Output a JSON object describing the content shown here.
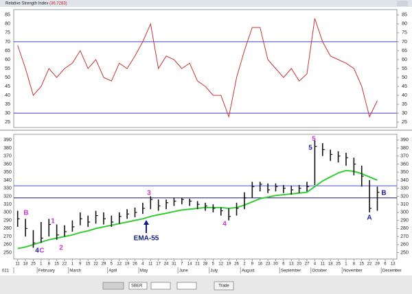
{
  "window": {
    "title": "Relative Strength Index",
    "current_value_label": "(36.7283)"
  },
  "chart_data": [
    {
      "type": "line",
      "name": "rsi",
      "color": "#c83232",
      "values": [
        68,
        55,
        40,
        45,
        55,
        50,
        55,
        58,
        65,
        55,
        60,
        50,
        48,
        58,
        55,
        62,
        70,
        80,
        55,
        62,
        60,
        55,
        58,
        48,
        45,
        40,
        40,
        28,
        50,
        65,
        78,
        78,
        60,
        55,
        50,
        55,
        48,
        52,
        83,
        70,
        62,
        60,
        58,
        55,
        45,
        28,
        37,
        null,
        null
      ],
      "ylim": [
        22,
        88
      ],
      "yticks": [
        25,
        30,
        35,
        40,
        45,
        50,
        55,
        60,
        65,
        70,
        75,
        80,
        85
      ],
      "levels": [
        70,
        30
      ],
      "level_color": "#3c3cc8"
    },
    {
      "type": "ohlc",
      "name": "price",
      "color": "#111111",
      "categories": [
        "11",
        "18",
        "25",
        "1",
        "8",
        "15",
        "22",
        "1",
        "9",
        "15",
        "22",
        "29",
        "5",
        "12",
        "19",
        "26",
        "4",
        "11",
        "17",
        "24",
        "31",
        "7",
        "14",
        "21",
        "28",
        "5",
        "12",
        "19",
        "26",
        "2",
        "9",
        "16",
        "23",
        "30",
        "6",
        "13",
        "20",
        "27",
        "4",
        "11",
        "18",
        "25",
        "1",
        "8",
        "15",
        "22",
        "29",
        "6",
        "13"
      ],
      "months": [
        "021",
        "February",
        "March",
        "April",
        "May",
        "June",
        "July",
        "August",
        "September",
        "October",
        "November",
        "December"
      ],
      "high": [
        302,
        292,
        278,
        288,
        292,
        285,
        284,
        290,
        300,
        296,
        302,
        300,
        296,
        300,
        304,
        306,
        312,
        320,
        316,
        316,
        318,
        318,
        317,
        314,
        312,
        310,
        306,
        305,
        312,
        325,
        338,
        338,
        336,
        336,
        334,
        333,
        334,
        338,
        390,
        386,
        378,
        376,
        374,
        368,
        358,
        340,
        332,
        null,
        null
      ],
      "low": [
        282,
        270,
        256,
        262,
        270,
        266,
        270,
        276,
        284,
        282,
        286,
        285,
        282,
        286,
        292,
        294,
        298,
        304,
        302,
        304,
        308,
        310,
        308,
        304,
        302,
        300,
        296,
        290,
        296,
        304,
        318,
        326,
        324,
        326,
        324,
        322,
        324,
        326,
        334,
        370,
        364,
        362,
        358,
        346,
        332,
        300,
        302,
        null,
        null
      ],
      "close": [
        292,
        280,
        262,
        268,
        285,
        272,
        276,
        282,
        292,
        288,
        296,
        292,
        288,
        295,
        298,
        300,
        305,
        316,
        308,
        312,
        314,
        316,
        314,
        310,
        308,
        305,
        302,
        295,
        305,
        318,
        332,
        335,
        328,
        332,
        330,
        328,
        330,
        332,
        382,
        378,
        372,
        370,
        368,
        360,
        345,
        305,
        325,
        null,
        null
      ],
      "ema": {
        "name": "EMA-55",
        "color": "#33cc33",
        "values": [
          255,
          257,
          260,
          263,
          266,
          268,
          270,
          272,
          275,
          277,
          280,
          282,
          284,
          286,
          288,
          290,
          292,
          295,
          297,
          299,
          301,
          303,
          304,
          305,
          306,
          306,
          306,
          305,
          306,
          309,
          313,
          317,
          319,
          321,
          322,
          323,
          324,
          325,
          332,
          339,
          344,
          349,
          352,
          351,
          348,
          344,
          340,
          null,
          null
        ]
      },
      "ylim": [
        242,
        397
      ],
      "yticks": [
        250,
        260,
        270,
        280,
        290,
        300,
        310,
        320,
        330,
        340,
        350,
        360,
        370,
        380,
        390
      ],
      "levels": [
        333,
        318
      ],
      "level_colors": [
        "#4a4ad0",
        "#1a1a60"
      ],
      "annotations": [
        {
          "text": "B",
          "color": "#cc33cc"
        },
        {
          "text": "1",
          "color": "#cc33cc"
        },
        {
          "text": "2",
          "color": "#cc33cc"
        },
        {
          "text": "4",
          "color": "#2020a0"
        },
        {
          "text": "C",
          "color": "#cc33cc"
        },
        {
          "text": "3",
          "color": "#cc33cc"
        },
        {
          "text": "EMA-55",
          "color": "#102080"
        },
        {
          "text": "4",
          "color": "#cc33cc"
        },
        {
          "text": "5",
          "color": "#cc33cc"
        },
        {
          "text": "5",
          "color": "#2020a0"
        },
        {
          "text": "A",
          "color": "#2020a0"
        },
        {
          "text": "B",
          "color": "#2020a0"
        }
      ]
    }
  ],
  "toolbar": {
    "symbol": "SBER",
    "tab": "Trade"
  }
}
